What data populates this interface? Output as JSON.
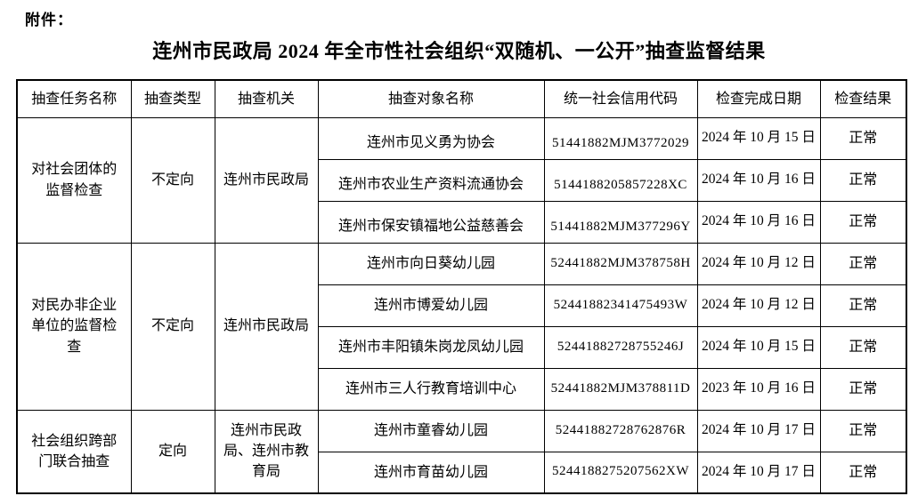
{
  "page": {
    "attachment_label": "附件：",
    "title": "连州市民政局 2024 年全市性社会组织“双随机、一公开”抽查监督结果"
  },
  "table": {
    "columns": [
      "抽查任务名称",
      "抽查类型",
      "抽查机关",
      "抽查对象名称",
      "统一社会信用代码",
      "检查完成日期",
      "检查结果"
    ],
    "groups": [
      {
        "task_name": "对社会团体的监督检查",
        "type": "不定向",
        "agency": "连州市民政局",
        "rows": [
          {
            "target": "连州市见义勇为协会",
            "credit_code": "51441882MJM3772029",
            "date": "2024 年 10 月 15 日",
            "result": "正常"
          },
          {
            "target": "连州市农业生产资料流通协会",
            "credit_code": "5144188205857228XC",
            "date": "2024 年 10 月 16 日",
            "result": "正常"
          },
          {
            "target": "连州市保安镇福地公益慈善会",
            "credit_code": "51441882MJM377296Y",
            "date": "2024 年 10 月 16 日",
            "result": "正常"
          }
        ]
      },
      {
        "task_name": "对民办非企业单位的监督检查",
        "type": "不定向",
        "agency": "连州市民政局",
        "rows": [
          {
            "target": "连州市向日葵幼儿园",
            "credit_code": "52441882MJM378758H",
            "date": "2024 年 10 月 12 日",
            "result": "正常"
          },
          {
            "target": "连州市博爱幼儿园",
            "credit_code": "52441882341475493W",
            "date": "2024 年 10 月 12 日",
            "result": "正常"
          },
          {
            "target": "连州市丰阳镇朱岗龙凤幼儿园",
            "credit_code": "52441882728755246J",
            "date": "2024 年 10 月 15 日",
            "result": "正常"
          },
          {
            "target": "连州市三人行教育培训中心",
            "credit_code": "52441882MJM378811D",
            "date": "2023 年 10 月 16 日",
            "result": "正常"
          }
        ]
      },
      {
        "task_name": "社会组织跨部门联合抽查",
        "type": "定向",
        "agency": "连州市民政局、连州市教育局",
        "rows": [
          {
            "target": "连州市童睿幼儿园",
            "credit_code": "52441882728762876R",
            "date": "2024 年 10 月 17 日",
            "result": "正常"
          },
          {
            "target": "连州市育苗幼儿园",
            "credit_code": "5244188275207562XW",
            "date": "2024 年 10 月 17 日",
            "result": "正常"
          }
        ]
      }
    ]
  }
}
